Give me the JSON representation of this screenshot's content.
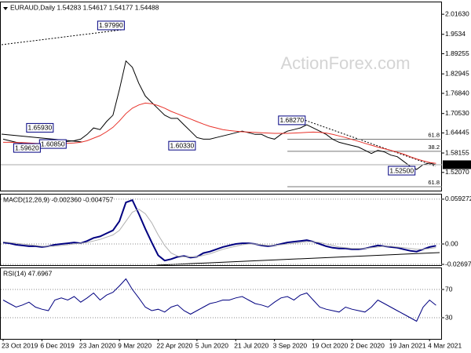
{
  "chart_data": [
    {
      "type": "line",
      "title": "EURAUD,Daily 1.54283 1.54617 1.54177 1.54488",
      "watermark": "ActionForex.com",
      "ylim": [
        1.4637,
        2.0535
      ],
      "yticks": [
        {
          "value": 2.0163,
          "label": "2.01630"
        },
        1.9534,
        {
          "value": 1.8925,
          "label": "1.89255"
        },
        1.82945,
        {
          "value": 1.7684,
          "label": "1.76840"
        },
        {
          "value": 1.7053,
          "label": "1.70530"
        },
        1.64445,
        1.58155,
        {
          "value": 1.5207,
          "label": "1.52070"
        }
      ],
      "grid": false,
      "current": 1.54488,
      "series": [
        {
          "name": "EURAUD",
          "color": "#000000",
          "values": [
            1.625,
            1.62,
            1.615,
            1.612,
            1.61,
            1.608,
            1.605,
            1.6,
            1.61,
            1.615,
            1.618,
            1.62,
            1.625,
            1.64,
            1.66,
            1.655,
            1.68,
            1.7,
            1.78,
            1.87,
            1.85,
            1.8,
            1.76,
            1.74,
            1.72,
            1.7,
            1.69,
            1.69,
            1.67,
            1.65,
            1.63,
            1.625,
            1.625,
            1.63,
            1.635,
            1.64,
            1.645,
            1.65,
            1.645,
            1.64,
            1.64,
            1.63,
            1.625,
            1.64,
            1.65,
            1.655,
            1.66,
            1.67,
            1.66,
            1.65,
            1.64,
            1.625,
            1.615,
            1.61,
            1.605,
            1.6,
            1.59,
            1.58,
            1.59,
            1.585,
            1.575,
            1.57,
            1.555,
            1.54,
            1.53,
            1.545,
            1.55,
            1.54488
          ]
        },
        {
          "name": "MA",
          "color": "#e8322a",
          "values": [
            1.615,
            1.615,
            1.614,
            1.614,
            1.613,
            1.612,
            1.611,
            1.61,
            1.61,
            1.611,
            1.612,
            1.613,
            1.615,
            1.62,
            1.628,
            1.636,
            1.648,
            1.662,
            1.682,
            1.705,
            1.722,
            1.732,
            1.738,
            1.736,
            1.73,
            1.722,
            1.712,
            1.704,
            1.696,
            1.688,
            1.68,
            1.672,
            1.665,
            1.66,
            1.655,
            1.652,
            1.65,
            1.648,
            1.647,
            1.646,
            1.645,
            1.644,
            1.643,
            1.643,
            1.643,
            1.644,
            1.645,
            1.646,
            1.647,
            1.646,
            1.644,
            1.64,
            1.635,
            1.63,
            1.624,
            1.618,
            1.612,
            1.606,
            1.6,
            1.595,
            1.59,
            1.584,
            1.578,
            1.57,
            1.563,
            1.557,
            1.552,
            1.549
          ]
        }
      ],
      "pivots": [
        {
          "label": "1.97990",
          "x": 19,
          "value": 1.9799
        },
        {
          "label": "1.65930",
          "x": 8,
          "value": 1.6593
        },
        {
          "label": "1.60850",
          "x": 10,
          "value": 1.6085
        },
        {
          "label": "1.59620",
          "x": 6,
          "value": 1.5962
        },
        {
          "label": "1.60330",
          "x": 30,
          "value": 1.6033
        },
        {
          "label": "1.68270",
          "x": 47,
          "value": 1.6827
        },
        {
          "label": "1.52500",
          "x": 64,
          "value": 1.525
        }
      ],
      "levels": [
        {
          "label": "61.8",
          "value": 1.6247
        },
        {
          "label": "38.2",
          "value": 1.587
        },
        {
          "label": "61.8",
          "value": 1.476
        }
      ]
    },
    {
      "type": "line",
      "title": "MACD(12,26,9) -0.002360 -0.004757",
      "ylim": [
        -0.028,
        0.0654
      ],
      "yticks": [
        0.059272,
        {
          "value": 0,
          "label": "0.00"
        },
        -0.026978
      ],
      "grid": true,
      "series": [
        {
          "name": "MACD",
          "color": "#000080",
          "width": 2,
          "values": [
            0.002,
            0.001,
            -0.001,
            -0.002,
            -0.003,
            -0.003,
            -0.004,
            -0.003,
            -0.001,
            0,
            0.001,
            0.002,
            0.001,
            0.004,
            0.008,
            0.01,
            0.014,
            0.018,
            0.03,
            0.055,
            0.058,
            0.04,
            0.02,
            0.002,
            -0.015,
            -0.022,
            -0.02,
            -0.017,
            -0.016,
            -0.018,
            -0.017,
            -0.012,
            -0.01,
            -0.007,
            -0.004,
            -0.002,
            0,
            0.001,
            0.001,
            0,
            -0.002,
            -0.003,
            -0.002,
            0,
            0.002,
            0.003,
            0.004,
            0.005,
            0.003,
            0,
            -0.003,
            -0.005,
            -0.006,
            -0.006,
            -0.007,
            -0.007,
            -0.006,
            -0.004,
            -0.002,
            -0.003,
            -0.004,
            -0.005,
            -0.007,
            -0.009,
            -0.01,
            -0.007,
            -0.004,
            -0.00236
          ]
        },
        {
          "name": "Signal",
          "color": "#b0b0b0",
          "width": 1,
          "values": [
            0.003,
            0.002,
            0.001,
            0,
            -0.001,
            -0.002,
            -0.003,
            -0.003,
            -0.003,
            -0.002,
            -0.001,
            0,
            0.001,
            0.002,
            0.004,
            0.006,
            0.009,
            0.012,
            0.018,
            0.03,
            0.042,
            0.046,
            0.04,
            0.028,
            0.012,
            -0.002,
            -0.012,
            -0.016,
            -0.017,
            -0.017,
            -0.017,
            -0.015,
            -0.013,
            -0.01,
            -0.007,
            -0.005,
            -0.003,
            -0.001,
            0,
            0,
            -0.001,
            -0.002,
            -0.002,
            -0.001,
            0,
            0.001,
            0.002,
            0.003,
            0.003,
            0.002,
            0,
            -0.002,
            -0.004,
            -0.005,
            -0.006,
            -0.006,
            -0.006,
            -0.005,
            -0.004,
            -0.003,
            -0.003,
            -0.004,
            -0.005,
            -0.006,
            -0.007,
            -0.007,
            -0.006,
            -0.004757
          ]
        }
      ]
    },
    {
      "type": "line",
      "title": "RSI(14) 47.6967",
      "ylim": [
        0,
        100
      ],
      "yticks": [
        70,
        30
      ],
      "grid": true,
      "categories": [
        "23 Oct 2019",
        null,
        null,
        null,
        null,
        null,
        "6 Dec 2019",
        null,
        null,
        null,
        null,
        null,
        "23 Jan 2020",
        null,
        null,
        null,
        null,
        null,
        "9 Mar 2020",
        null,
        null,
        null,
        null,
        null,
        "22 Apr 2020",
        null,
        null,
        null,
        null,
        null,
        "5 Jun 2020",
        null,
        null,
        null,
        null,
        null,
        "21 Jul 2020",
        null,
        null,
        null,
        null,
        null,
        "3 Sep 2020",
        null,
        null,
        null,
        null,
        null,
        "19 Oct 2020",
        null,
        null,
        null,
        null,
        null,
        "2 Dec 2020",
        null,
        null,
        null,
        null,
        null,
        "19 Jan 2021",
        null,
        null,
        null,
        null,
        null,
        "4 Mar 2021",
        null
      ],
      "series": [
        {
          "name": "RSI",
          "color": "#000080",
          "width": 1,
          "values": [
            55,
            50,
            45,
            48,
            52,
            45,
            42,
            40,
            55,
            58,
            55,
            60,
            52,
            58,
            65,
            55,
            62,
            66,
            75,
            85,
            70,
            58,
            45,
            40,
            42,
            38,
            45,
            48,
            40,
            35,
            40,
            45,
            50,
            52,
            55,
            55,
            58,
            60,
            55,
            50,
            48,
            45,
            52,
            58,
            60,
            55,
            62,
            65,
            55,
            45,
            42,
            40,
            38,
            45,
            42,
            40,
            38,
            45,
            55,
            50,
            45,
            40,
            35,
            30,
            25,
            45,
            55,
            47.6967
          ]
        }
      ]
    }
  ]
}
